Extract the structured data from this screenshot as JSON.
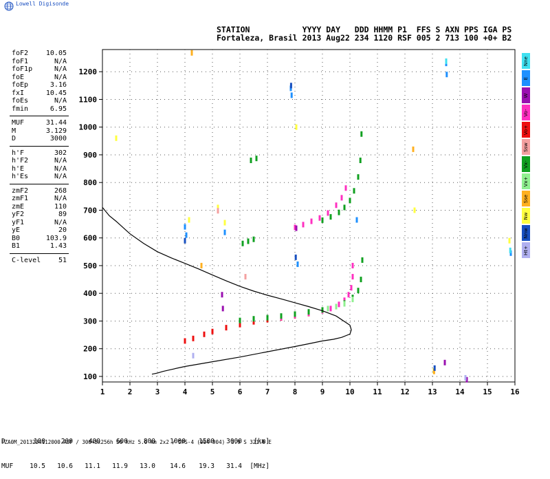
{
  "brand": "Lowell Digisonde",
  "header": {
    "line1": "STATION           YYYY DAY   DDD HHMM P1  FFS S AXN PPS IGA PS",
    "line2": "Fortaleza, Brasil 2013 Aug22 234 1120 RSF 005 2 713 100 +0+ B2"
  },
  "params": [
    {
      "name": "foF2",
      "value": "10.05"
    },
    {
      "name": "foF1",
      "value": "N/A"
    },
    {
      "name": "foF1p",
      "value": "N/A"
    },
    {
      "name": "foE",
      "value": "N/A"
    },
    {
      "name": "foEp",
      "value": "3.16"
    },
    {
      "name": "fxI",
      "value": "10.45"
    },
    {
      "name": "foEs",
      "value": "N/A"
    },
    {
      "name": "fmin",
      "value": "6.95"
    },
    {
      "sep": true
    },
    {
      "name": "MUF",
      "value": "31.44"
    },
    {
      "name": "M",
      "value": "3.129"
    },
    {
      "name": "D",
      "value": "3000"
    },
    {
      "sep": true
    },
    {
      "name": "h'F",
      "value": "302"
    },
    {
      "name": "h'F2",
      "value": "N/A"
    },
    {
      "name": "h'E",
      "value": "N/A"
    },
    {
      "name": "h'Es",
      "value": "N/A"
    },
    {
      "sep": true
    },
    {
      "name": "zmF2",
      "value": "268"
    },
    {
      "name": "zmF1",
      "value": "N/A"
    },
    {
      "name": "zmE",
      "value": "110"
    },
    {
      "name": "yF2",
      "value": "89"
    },
    {
      "name": "yF1",
      "value": "N/A"
    },
    {
      "name": "yE",
      "value": "20"
    },
    {
      "name": "B0",
      "value": "103.9"
    },
    {
      "name": "B1",
      "value": "1.43"
    },
    {
      "sep": true
    },
    {
      "name": "C-level",
      "value": "51"
    }
  ],
  "legend": [
    {
      "label": "Nne",
      "color": "#3fe0f0"
    },
    {
      "label": "E",
      "color": "#1e90ff"
    },
    {
      "label": "W",
      "color": "#9a10b0"
    },
    {
      "label": "Vo-",
      "color": "#ff30c0"
    },
    {
      "label": "Vo+",
      "color": "#ee1010"
    },
    {
      "label": "Ssw",
      "color": "#f4a0a0"
    },
    {
      "label": "Vx-",
      "color": "#10a020"
    },
    {
      "label": "Vx+",
      "color": "#90f090"
    },
    {
      "label": "Sse",
      "color": "#ffb020"
    },
    {
      "label": "Nw",
      "color": "#ffff40"
    },
    {
      "label": "Nnw",
      "color": "#1850c0"
    },
    {
      "label": "Ht+",
      "color": "#b0b0f0"
    }
  ],
  "muf_table": {
    "d_label": "D",
    "d_values": [
      "100",
      "200",
      "400",
      "600",
      "800",
      "1000",
      "1500",
      "3000"
    ],
    "d_unit": "[km]",
    "muf_label": "MUF",
    "muf_values": [
      "10.5",
      "10.6",
      "11.1",
      "11.9",
      "13.0",
      "14.6",
      "19.3",
      "31.4"
    ],
    "muf_unit": "[MHz]"
  },
  "footer": "FZA0M_2013234112000.RSF / 300+5x256h 50 kHz 5.0 km 2x2 / DPS-4 (904-904)  3.9 S 321.6 E",
  "chart_data": {
    "type": "scatter",
    "xlim": [
      1,
      16
    ],
    "ylim": [
      80,
      1280
    ],
    "x_ticks": [
      1,
      2,
      3,
      4,
      5,
      6,
      7,
      8,
      9,
      10,
      11,
      12,
      13,
      14,
      15,
      16
    ],
    "y_ticks": [
      100,
      200,
      300,
      400,
      500,
      600,
      700,
      800,
      900,
      1000,
      1100,
      1200
    ],
    "grid": true,
    "profile": {
      "x": [
        1.0,
        1.25,
        1.5,
        2.0,
        2.5,
        3.0,
        3.5,
        4.0,
        4.5,
        5.0,
        5.5,
        6.0,
        6.5,
        7.0,
        7.5,
        8.0,
        8.5,
        9.0,
        9.5,
        10.0,
        10.05,
        10.0,
        9.7,
        9.4,
        9.0,
        8.5,
        8.0,
        7.0,
        6.0,
        5.0,
        4.0,
        3.5,
        3.2,
        3.0,
        2.8
      ],
      "y": [
        710,
        680,
        660,
        615,
        580,
        550,
        528,
        508,
        488,
        466,
        445,
        425,
        408,
        393,
        380,
        366,
        352,
        337,
        318,
        285,
        268,
        253,
        241,
        234,
        228,
        218,
        208,
        189,
        170,
        153,
        136,
        125,
        118,
        112,
        108
      ]
    },
    "series": [
      {
        "name": "Vo+",
        "color": "#ee1010",
        "x": [
          4.0,
          4.3,
          4.7,
          5.0,
          5.5,
          6.0,
          6.5,
          7.0,
          7.5,
          8.0,
          8.5,
          9.0
        ],
        "y": [
          228,
          237,
          252,
          262,
          276,
          287,
          297,
          305,
          311,
          319,
          327,
          337
        ]
      },
      {
        "name": "Vo-",
        "color": "#ff30c0",
        "x": [
          7.5,
          8.0,
          8.5,
          9.0,
          9.3,
          9.6,
          9.8,
          9.95,
          10.05,
          10.1,
          10.1,
          8.0,
          8.3,
          8.6,
          8.9,
          9.2,
          9.5,
          9.7,
          9.85
        ],
        "y": [
          312,
          320,
          328,
          337,
          345,
          360,
          375,
          395,
          420,
          460,
          500,
          638,
          648,
          660,
          672,
          690,
          718,
          745,
          780
        ]
      },
      {
        "name": "Vx-",
        "color": "#10a020",
        "x": [
          6.0,
          6.5,
          7.0,
          7.5,
          8.0,
          8.5,
          9.0,
          9.5,
          9.8,
          10.1,
          10.3,
          10.4,
          10.45,
          9.0,
          9.3,
          9.6,
          9.8,
          10.0,
          10.15,
          10.3,
          10.38,
          10.42,
          6.1,
          6.3,
          6.5,
          6.4,
          6.6
        ],
        "y": [
          302,
          308,
          312,
          318,
          325,
          333,
          340,
          352,
          365,
          385,
          410,
          450,
          520,
          664,
          676,
          692,
          710,
          735,
          770,
          820,
          880,
          975,
          580,
          588,
          595,
          880,
          887
        ]
      },
      {
        "name": "Vx+",
        "color": "#90f090",
        "x": [
          9.2,
          9.5,
          9.8,
          10.1
        ],
        "y": [
          345,
          352,
          362,
          378
        ]
      },
      {
        "name": "E",
        "color": "#1e90ff",
        "x": [
          4.0,
          4.05,
          5.45,
          7.85,
          7.88,
          8.1,
          10.25,
          13.5,
          13.52,
          15.85
        ],
        "y": [
          640,
          610,
          620,
          1140,
          1115,
          505,
          665,
          1230,
          1190,
          545
        ]
      },
      {
        "name": "W",
        "color": "#9a10b0",
        "x": [
          5.35,
          5.38,
          8.05,
          13.45,
          14.25
        ],
        "y": [
          395,
          345,
          635,
          150,
          88
        ]
      },
      {
        "name": "Nw",
        "color": "#ffff40",
        "x": [
          1.5,
          4.15,
          5.45,
          5.2,
          8.05,
          12.35,
          13.05,
          15.8
        ],
        "y": [
          960,
          665,
          655,
          710,
          1000,
          700,
          120,
          590
        ]
      },
      {
        "name": "Sse",
        "color": "#ffb020",
        "x": [
          4.25,
          4.6,
          12.3,
          13.06
        ],
        "y": [
          1268,
          500,
          920,
          118
        ]
      },
      {
        "name": "Nne",
        "color": "#3fe0f0",
        "x": [
          13.5,
          15.83
        ],
        "y": [
          1238,
          555
        ]
      },
      {
        "name": "Nnw",
        "color": "#1850c0",
        "x": [
          7.86,
          8.03,
          4.0,
          13.08
        ],
        "y": [
          1150,
          530,
          590,
          130
        ]
      },
      {
        "name": "Ssw",
        "color": "#f4a0a0",
        "x": [
          5.2,
          6.2
        ],
        "y": [
          698,
          460
        ]
      },
      {
        "name": "Ht+",
        "color": "#b0b0f0",
        "x": [
          4.3,
          14.2
        ],
        "y": [
          175,
          95
        ]
      }
    ]
  }
}
